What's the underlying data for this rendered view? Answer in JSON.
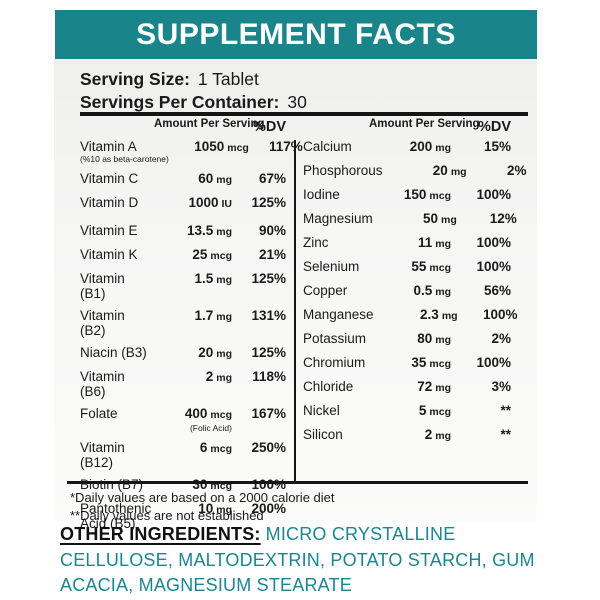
{
  "header": {
    "title": "SUPPLEMENT FACTS"
  },
  "serving": {
    "size_label": "Serving Size:",
    "size_value": "1 Tablet",
    "container_label": "Servings Per Container:",
    "container_value": "30"
  },
  "columns": {
    "amount_header": "Amount Per Serving",
    "dv_header": "%DV"
  },
  "left_rows": [
    {
      "name": "Vitamin A",
      "note": "(%10 as beta-carotene)",
      "amount": "1050",
      "unit": "mcg",
      "dv": "117%"
    },
    {
      "name": "Vitamin C",
      "amount": "60",
      "unit": "mg",
      "dv": "67%"
    },
    {
      "name": "Vitamin D",
      "amount": "1000",
      "unit": "IU",
      "dv": "125%"
    },
    {
      "name": "Vitamin E",
      "amount": "13.5",
      "unit": "mg",
      "dv": "90%",
      "gap_before": true
    },
    {
      "name": "Vitamin K",
      "amount": "25",
      "unit": "mcg",
      "dv": "21%"
    },
    {
      "name": "Vitamin (B1)",
      "amount": "1.5",
      "unit": "mg",
      "dv": "125%"
    },
    {
      "name": "Vitamin (B2)",
      "amount": "1.7",
      "unit": "mg",
      "dv": "131%"
    },
    {
      "name": "Niacin (B3)",
      "amount": "20",
      "unit": "mg",
      "dv": "125%"
    },
    {
      "name": "Vitamin (B6)",
      "amount": "2",
      "unit": "mg",
      "dv": "118%"
    },
    {
      "name": "Folate",
      "amount": "400",
      "unit": "mcg",
      "amount_note": "(Folic Acid)",
      "dv": "167%"
    },
    {
      "name": "Vitamin (B12)",
      "amount": "6",
      "unit": "mcg",
      "dv": "250%"
    },
    {
      "name": "Biotin (B7)",
      "amount": "30",
      "unit": "mcg",
      "dv": "100%"
    },
    {
      "name": "Pantothenic Acid (B5)",
      "amount": "10",
      "unit": "mg",
      "dv": "200%"
    }
  ],
  "right_rows": [
    {
      "name": "Calcium",
      "amount": "200",
      "unit": "mg",
      "dv": "15%"
    },
    {
      "name": "Phosphorous",
      "amount": "20",
      "unit": "mg",
      "dv": "2%"
    },
    {
      "name": "Iodine",
      "amount": "150",
      "unit": "mcg",
      "dv": "100%"
    },
    {
      "name": "Magnesium",
      "amount": "50",
      "unit": "mg",
      "dv": "12%"
    },
    {
      "name": "Zinc",
      "amount": "11",
      "unit": "mg",
      "dv": "100%"
    },
    {
      "name": "Selenium",
      "amount": "55",
      "unit": "mcg",
      "dv": "100%"
    },
    {
      "name": "Copper",
      "amount": "0.5",
      "unit": "mg",
      "dv": "56%"
    },
    {
      "name": "Manganese",
      "amount": "2.3",
      "unit": "mg",
      "dv": "100%"
    },
    {
      "name": "Potassium",
      "amount": "80",
      "unit": "mg",
      "dv": "2%"
    },
    {
      "name": "Chromium",
      "amount": "35",
      "unit": "mcg",
      "dv": "100%"
    },
    {
      "name": "Chloride",
      "amount": "72",
      "unit": "mg",
      "dv": "3%"
    },
    {
      "name": "Nickel",
      "amount": "5",
      "unit": "mcg",
      "dv": "**"
    },
    {
      "name": "Silicon",
      "amount": "2",
      "unit": "mg",
      "dv": "**"
    }
  ],
  "footnotes": [
    "*Daily values are based on a 2000 calorie diet",
    "**Daily values are not established"
  ],
  "other_ingredients": {
    "label": "OTHER INGREDIENTS:",
    "value": "MICRO CRYSTALLINE CELLULOSE, MALTODEXTRIN, POTATO STARCH, GUM ACACIA, MAGNESIUM STEARATE"
  },
  "colors": {
    "teal_bar": "#19858A",
    "teal_ingredients_text": "#1B8590",
    "rule_black": "#151515"
  }
}
